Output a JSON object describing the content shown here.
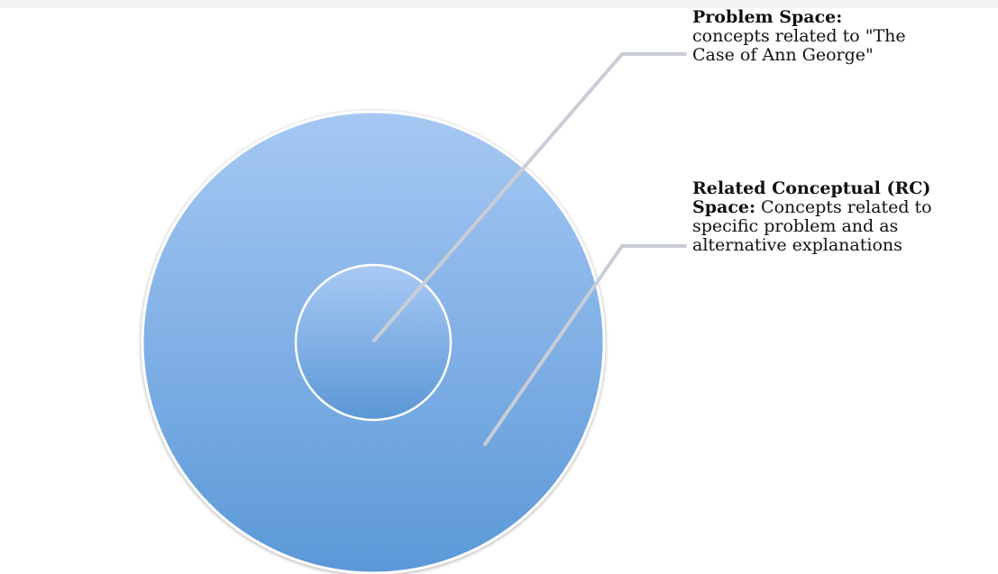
{
  "labels": {
    "problem_space": {
      "heading": "Problem Space:",
      "desc": "concepts related to \"The Case of Ann George\""
    },
    "rc_space": {
      "heading": "Related Conceptual (RC) Space:",
      "desc": "Concepts related to specific problem and as alternative explanations"
    }
  },
  "colors": {
    "outer_circle_top": "#a6c8f3",
    "outer_circle_bottom": "#5b98d8",
    "inner_circle_top": "#a9caf4",
    "inner_circle_bottom": "#5a97d6",
    "circle_border": "#ffffff",
    "connector_line": "#c9cdd6"
  }
}
